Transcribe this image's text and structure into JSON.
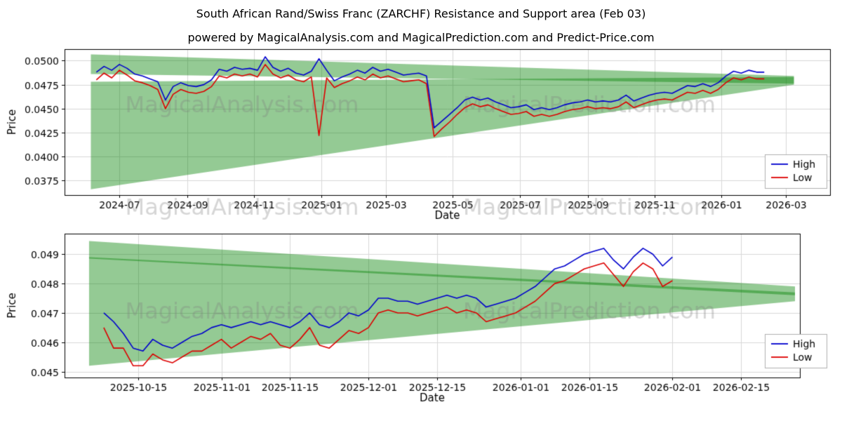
{
  "figure": {
    "title": "South African Rand/Swiss Franc (ZARCHF) Resistance and Support area (Feb 03)",
    "subtitle": "powered by MagicalAnalysis.com and MagicalPrediction.com and Predict-Price.com",
    "background": "#ffffff",
    "watermarks": [
      "MagicalAnalysis.com",
      "MagicalPrediction.com"
    ],
    "watermark_color": "rgba(128,128,128,0.32)",
    "grid_color": "#d8d8d8",
    "band_color": "rgba(0,128,0,0.42)",
    "high_color": "#0000cd",
    "low_color": "#dd0000"
  },
  "chart_data": [
    {
      "type": "line",
      "name": "overview",
      "xlabel": "Date",
      "ylabel": "Price",
      "x_range": [
        "2024-05-12",
        "2026-04-10"
      ],
      "y_range": [
        0.036,
        0.0512
      ],
      "grid": true,
      "legend_position": "lower right",
      "x_ticks": [
        {
          "date": "2024-07-01",
          "label": "2024-07"
        },
        {
          "date": "2024-09-01",
          "label": "2024-09"
        },
        {
          "date": "2024-11-01",
          "label": "2024-11"
        },
        {
          "date": "2025-01-01",
          "label": "2025-01"
        },
        {
          "date": "2025-03-01",
          "label": "2025-03"
        },
        {
          "date": "2025-05-01",
          "label": "2025-05"
        },
        {
          "date": "2025-07-01",
          "label": "2025-07"
        },
        {
          "date": "2025-09-01",
          "label": "2025-09"
        },
        {
          "date": "2025-11-01",
          "label": "2025-11"
        },
        {
          "date": "2026-01-01",
          "label": "2026-01"
        },
        {
          "date": "2026-03-01",
          "label": "2026-03"
        }
      ],
      "y_ticks": [
        {
          "value": 0.0375,
          "label": "0.0375"
        },
        {
          "value": 0.04,
          "label": "0.0400"
        },
        {
          "value": 0.0425,
          "label": "0.0425"
        },
        {
          "value": 0.045,
          "label": "0.0450"
        },
        {
          "value": 0.0475,
          "label": "0.0475"
        },
        {
          "value": 0.05,
          "label": "0.0500"
        }
      ],
      "bands": [
        {
          "name": "resistance-area",
          "x": [
            "2024-06-05",
            "2026-03-08"
          ],
          "upper": [
            0.05065,
            0.0484
          ],
          "lower": [
            0.0486,
            0.0476
          ]
        },
        {
          "name": "support-area",
          "x": [
            "2024-06-05",
            "2026-03-08"
          ],
          "upper": [
            0.0478,
            0.0483
          ],
          "lower": [
            0.0366,
            0.0475
          ]
        }
      ],
      "series": [
        {
          "name": "High",
          "x": [
            "2024-06-10",
            "2024-06-17",
            "2024-06-24",
            "2024-07-01",
            "2024-07-08",
            "2024-07-15",
            "2024-07-22",
            "2024-07-29",
            "2024-08-05",
            "2024-08-12",
            "2024-08-19",
            "2024-08-26",
            "2024-09-02",
            "2024-09-09",
            "2024-09-16",
            "2024-09-23",
            "2024-09-30",
            "2024-10-07",
            "2024-10-14",
            "2024-10-21",
            "2024-10-28",
            "2024-11-04",
            "2024-11-11",
            "2024-11-18",
            "2024-11-25",
            "2024-12-02",
            "2024-12-09",
            "2024-12-16",
            "2024-12-23",
            "2024-12-30",
            "2025-01-06",
            "2025-01-13",
            "2025-01-20",
            "2025-01-27",
            "2025-02-03",
            "2025-02-10",
            "2025-02-17",
            "2025-02-24",
            "2025-03-03",
            "2025-03-10",
            "2025-03-17",
            "2025-03-24",
            "2025-03-31",
            "2025-04-07",
            "2025-04-14",
            "2025-04-21",
            "2025-04-28",
            "2025-05-05",
            "2025-05-12",
            "2025-05-19",
            "2025-05-26",
            "2025-06-02",
            "2025-06-09",
            "2025-06-16",
            "2025-06-23",
            "2025-06-30",
            "2025-07-07",
            "2025-07-14",
            "2025-07-21",
            "2025-07-28",
            "2025-08-04",
            "2025-08-11",
            "2025-08-18",
            "2025-08-25",
            "2025-09-01",
            "2025-09-08",
            "2025-09-15",
            "2025-09-22",
            "2025-09-29",
            "2025-10-06",
            "2025-10-13",
            "2025-10-20",
            "2025-10-27",
            "2025-11-03",
            "2025-11-10",
            "2025-11-17",
            "2025-11-24",
            "2025-12-01",
            "2025-12-08",
            "2025-12-15",
            "2025-12-22",
            "2025-12-29",
            "2026-01-05",
            "2026-01-12",
            "2026-01-19",
            "2026-01-26",
            "2026-02-02",
            "2026-02-09"
          ],
          "y": [
            0.0488,
            0.0494,
            0.049,
            0.0496,
            0.0492,
            0.0486,
            0.0484,
            0.0481,
            0.0478,
            0.0459,
            0.0473,
            0.0477,
            0.0474,
            0.0473,
            0.0475,
            0.048,
            0.0491,
            0.0489,
            0.0493,
            0.0491,
            0.0492,
            0.049,
            0.0504,
            0.0493,
            0.0489,
            0.0492,
            0.0487,
            0.0485,
            0.0489,
            0.0502,
            0.049,
            0.0479,
            0.0483,
            0.0486,
            0.049,
            0.0487,
            0.0493,
            0.0489,
            0.0491,
            0.0488,
            0.0485,
            0.0486,
            0.0487,
            0.0484,
            0.043,
            0.0437,
            0.0444,
            0.0451,
            0.0459,
            0.0462,
            0.0459,
            0.0461,
            0.0457,
            0.0454,
            0.0451,
            0.0452,
            0.0454,
            0.0449,
            0.0451,
            0.0449,
            0.0451,
            0.0454,
            0.0456,
            0.0457,
            0.0459,
            0.0457,
            0.0458,
            0.0457,
            0.0459,
            0.0464,
            0.0458,
            0.0461,
            0.0464,
            0.0466,
            0.0467,
            0.0466,
            0.047,
            0.0474,
            0.0473,
            0.0476,
            0.0473,
            0.0477,
            0.0484,
            0.0489,
            0.0487,
            0.049,
            0.0488,
            0.0488
          ]
        },
        {
          "name": "Low",
          "x": [
            "2024-06-10",
            "2024-06-17",
            "2024-06-24",
            "2024-07-01",
            "2024-07-08",
            "2024-07-15",
            "2024-07-22",
            "2024-07-29",
            "2024-08-05",
            "2024-08-12",
            "2024-08-19",
            "2024-08-26",
            "2024-09-02",
            "2024-09-09",
            "2024-09-16",
            "2024-09-23",
            "2024-09-30",
            "2024-10-07",
            "2024-10-14",
            "2024-10-21",
            "2024-10-28",
            "2024-11-04",
            "2024-11-11",
            "2024-11-18",
            "2024-11-25",
            "2024-12-02",
            "2024-12-09",
            "2024-12-16",
            "2024-12-23",
            "2024-12-30",
            "2025-01-06",
            "2025-01-13",
            "2025-01-20",
            "2025-01-27",
            "2025-02-03",
            "2025-02-10",
            "2025-02-17",
            "2025-02-24",
            "2025-03-03",
            "2025-03-10",
            "2025-03-17",
            "2025-03-24",
            "2025-03-31",
            "2025-04-07",
            "2025-04-14",
            "2025-04-21",
            "2025-04-28",
            "2025-05-05",
            "2025-05-12",
            "2025-05-19",
            "2025-05-26",
            "2025-06-02",
            "2025-06-09",
            "2025-06-16",
            "2025-06-23",
            "2025-06-30",
            "2025-07-07",
            "2025-07-14",
            "2025-07-21",
            "2025-07-28",
            "2025-08-04",
            "2025-08-11",
            "2025-08-18",
            "2025-08-25",
            "2025-09-01",
            "2025-09-08",
            "2025-09-15",
            "2025-09-22",
            "2025-09-29",
            "2025-10-06",
            "2025-10-13",
            "2025-10-20",
            "2025-10-27",
            "2025-11-03",
            "2025-11-10",
            "2025-11-17",
            "2025-11-24",
            "2025-12-01",
            "2025-12-08",
            "2025-12-15",
            "2025-12-22",
            "2025-12-29",
            "2026-01-05",
            "2026-01-12",
            "2026-01-19",
            "2026-01-26",
            "2026-02-02",
            "2026-02-09"
          ],
          "y": [
            0.048,
            0.0487,
            0.0482,
            0.049,
            0.0485,
            0.0479,
            0.0477,
            0.0474,
            0.047,
            0.045,
            0.0465,
            0.047,
            0.0467,
            0.0466,
            0.0468,
            0.0473,
            0.0484,
            0.0482,
            0.0486,
            0.0484,
            0.0486,
            0.0483,
            0.0496,
            0.0486,
            0.0482,
            0.0485,
            0.048,
            0.0478,
            0.0483,
            0.0422,
            0.0482,
            0.0472,
            0.0476,
            0.0479,
            0.0483,
            0.048,
            0.0486,
            0.0482,
            0.0484,
            0.0481,
            0.0478,
            0.0479,
            0.048,
            0.0476,
            0.0421,
            0.0429,
            0.0436,
            0.0444,
            0.0451,
            0.0455,
            0.0452,
            0.0454,
            0.045,
            0.0447,
            0.0444,
            0.0445,
            0.0447,
            0.0442,
            0.0444,
            0.0442,
            0.0444,
            0.0447,
            0.0449,
            0.045,
            0.0452,
            0.045,
            0.0451,
            0.045,
            0.0452,
            0.0457,
            0.0451,
            0.0454,
            0.0457,
            0.0459,
            0.046,
            0.0459,
            0.0463,
            0.0467,
            0.0466,
            0.0469,
            0.0466,
            0.047,
            0.0477,
            0.0482,
            0.048,
            0.0483,
            0.0481,
            0.0481
          ]
        }
      ]
    },
    {
      "type": "line",
      "name": "detail",
      "xlabel": "Date",
      "ylabel": "Price",
      "x_range": [
        "2025-09-30",
        "2026-02-27"
      ],
      "y_range": [
        0.0448,
        0.0497
      ],
      "grid": true,
      "legend_position": "lower right",
      "x_ticks": [
        {
          "date": "2025-10-15",
          "label": "2025-10-15"
        },
        {
          "date": "2025-11-01",
          "label": "2025-11-01"
        },
        {
          "date": "2025-11-15",
          "label": "2025-11-15"
        },
        {
          "date": "2025-12-01",
          "label": "2025-12-01"
        },
        {
          "date": "2025-12-15",
          "label": "2025-12-15"
        },
        {
          "date": "2026-01-01",
          "label": "2026-01-01"
        },
        {
          "date": "2026-01-15",
          "label": "2026-01-15"
        },
        {
          "date": "2026-02-01",
          "label": "2026-02-01"
        },
        {
          "date": "2026-02-15",
          "label": "2026-02-15"
        }
      ],
      "y_ticks": [
        {
          "value": 0.045,
          "label": "0.045"
        },
        {
          "value": 0.046,
          "label": "0.046"
        },
        {
          "value": 0.047,
          "label": "0.047"
        },
        {
          "value": 0.048,
          "label": "0.048"
        },
        {
          "value": 0.049,
          "label": "0.049"
        }
      ],
      "bands": [
        {
          "name": "resistance-area",
          "x": [
            "2025-10-05",
            "2026-02-26"
          ],
          "upper": [
            0.04945,
            0.0479
          ],
          "lower": [
            0.04885,
            0.0476
          ]
        },
        {
          "name": "support-area",
          "x": [
            "2025-10-05",
            "2026-02-26"
          ],
          "upper": [
            0.0489,
            0.0477
          ],
          "lower": [
            0.0452,
            0.0474
          ]
        }
      ],
      "series": [
        {
          "name": "High",
          "x": [
            "2025-10-08",
            "2025-10-10",
            "2025-10-12",
            "2025-10-14",
            "2025-10-16",
            "2025-10-18",
            "2025-10-20",
            "2025-10-22",
            "2025-10-24",
            "2025-10-26",
            "2025-10-28",
            "2025-10-30",
            "2025-11-01",
            "2025-11-03",
            "2025-11-05",
            "2025-11-07",
            "2025-11-09",
            "2025-11-11",
            "2025-11-13",
            "2025-11-15",
            "2025-11-17",
            "2025-11-19",
            "2025-11-21",
            "2025-11-23",
            "2025-11-25",
            "2025-11-27",
            "2025-11-29",
            "2025-12-01",
            "2025-12-03",
            "2025-12-05",
            "2025-12-07",
            "2025-12-09",
            "2025-12-11",
            "2025-12-13",
            "2025-12-15",
            "2025-12-17",
            "2025-12-19",
            "2025-12-21",
            "2025-12-23",
            "2025-12-25",
            "2025-12-27",
            "2025-12-29",
            "2025-12-31",
            "2026-01-02",
            "2026-01-04",
            "2026-01-06",
            "2026-01-08",
            "2026-01-10",
            "2026-01-12",
            "2026-01-14",
            "2026-01-16",
            "2026-01-18",
            "2026-01-20",
            "2026-01-22",
            "2026-01-24",
            "2026-01-26",
            "2026-01-28",
            "2026-01-30",
            "2026-02-01"
          ],
          "y": [
            0.047,
            0.0467,
            0.0463,
            0.0458,
            0.0457,
            0.0461,
            0.0459,
            0.0458,
            0.046,
            0.0462,
            0.0463,
            0.0465,
            0.0466,
            0.0465,
            0.0466,
            0.0467,
            0.0466,
            0.0467,
            0.0466,
            0.0465,
            0.0467,
            0.047,
            0.0466,
            0.0465,
            0.0467,
            0.047,
            0.0469,
            0.0471,
            0.0475,
            0.0475,
            0.0474,
            0.0474,
            0.0473,
            0.0474,
            0.0475,
            0.0476,
            0.0475,
            0.0476,
            0.0475,
            0.0472,
            0.0473,
            0.0474,
            0.0475,
            0.0477,
            0.0479,
            0.0482,
            0.0485,
            0.0486,
            0.0488,
            0.049,
            0.0491,
            0.0492,
            0.0488,
            0.0485,
            0.0489,
            0.0492,
            0.049,
            0.0486,
            0.0489
          ]
        },
        {
          "name": "Low",
          "x": [
            "2025-10-08",
            "2025-10-10",
            "2025-10-12",
            "2025-10-14",
            "2025-10-16",
            "2025-10-18",
            "2025-10-20",
            "2025-10-22",
            "2025-10-24",
            "2025-10-26",
            "2025-10-28",
            "2025-10-30",
            "2025-11-01",
            "2025-11-03",
            "2025-11-05",
            "2025-11-07",
            "2025-11-09",
            "2025-11-11",
            "2025-11-13",
            "2025-11-15",
            "2025-11-17",
            "2025-11-19",
            "2025-11-21",
            "2025-11-23",
            "2025-11-25",
            "2025-11-27",
            "2025-11-29",
            "2025-12-01",
            "2025-12-03",
            "2025-12-05",
            "2025-12-07",
            "2025-12-09",
            "2025-12-11",
            "2025-12-13",
            "2025-12-15",
            "2025-12-17",
            "2025-12-19",
            "2025-12-21",
            "2025-12-23",
            "2025-12-25",
            "2025-12-27",
            "2025-12-29",
            "2025-12-31",
            "2026-01-02",
            "2026-01-04",
            "2026-01-06",
            "2026-01-08",
            "2026-01-10",
            "2026-01-12",
            "2026-01-14",
            "2026-01-16",
            "2026-01-18",
            "2026-01-20",
            "2026-01-22",
            "2026-01-24",
            "2026-01-26",
            "2026-01-28",
            "2026-01-30",
            "2026-02-01"
          ],
          "y": [
            0.0465,
            0.0458,
            0.0458,
            0.0452,
            0.0452,
            0.0456,
            0.0454,
            0.0453,
            0.0455,
            0.0457,
            0.0457,
            0.0459,
            0.0461,
            0.0458,
            0.046,
            0.0462,
            0.0461,
            0.0463,
            0.0459,
            0.0458,
            0.0461,
            0.0465,
            0.0459,
            0.0458,
            0.0461,
            0.0464,
            0.0463,
            0.0465,
            0.047,
            0.0471,
            0.047,
            0.047,
            0.0469,
            0.047,
            0.0471,
            0.0472,
            0.047,
            0.0471,
            0.047,
            0.0467,
            0.0468,
            0.0469,
            0.047,
            0.0472,
            0.0474,
            0.0477,
            0.048,
            0.0481,
            0.0483,
            0.0485,
            0.0486,
            0.0487,
            0.0483,
            0.0479,
            0.0484,
            0.0487,
            0.0485,
            0.0479,
            0.0481
          ]
        }
      ]
    }
  ]
}
